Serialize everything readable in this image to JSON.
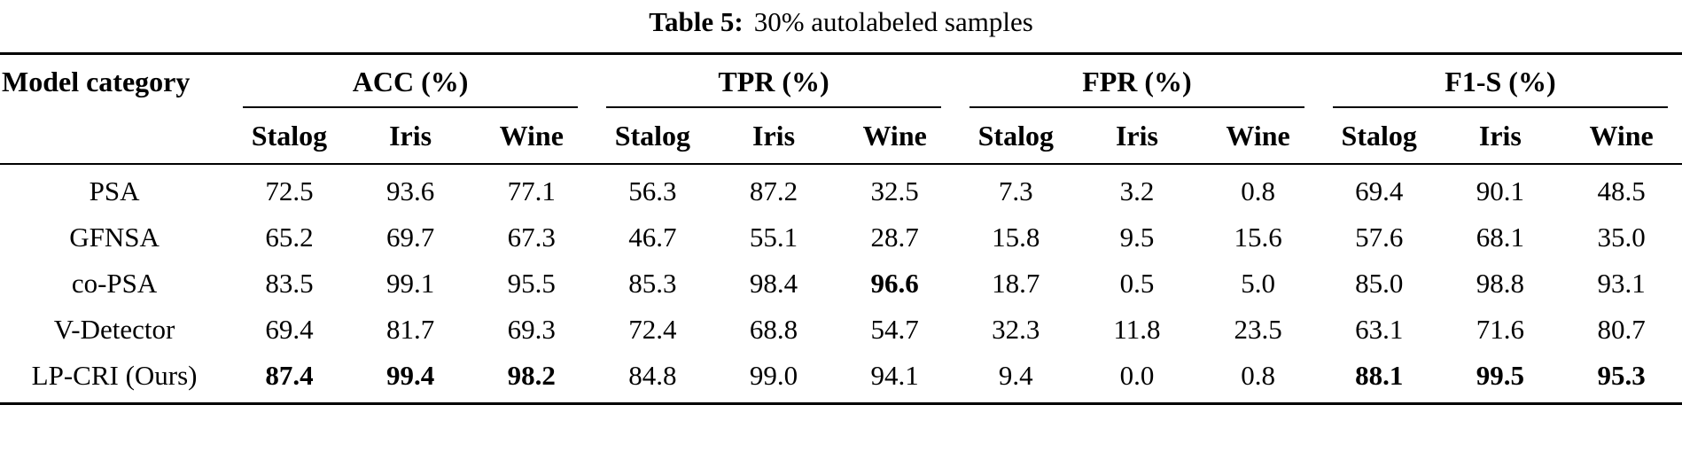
{
  "title": {
    "label": "Table 5:",
    "caption": "30% autolabeled samples"
  },
  "table": {
    "corner_header": "Model category",
    "groups": [
      {
        "label": "ACC (%)"
      },
      {
        "label": "TPR (%)"
      },
      {
        "label": "FPR (%)"
      },
      {
        "label": "F1-S (%)"
      }
    ],
    "subheaders": [
      "Stalog",
      "Iris",
      "Wine"
    ],
    "rows": [
      {
        "model": "PSA",
        "values": [
          "72.5",
          "93.6",
          "77.1",
          "56.3",
          "87.2",
          "32.5",
          "7.3",
          "3.2",
          "0.8",
          "69.4",
          "90.1",
          "48.5"
        ],
        "bold": []
      },
      {
        "model": "GFNSA",
        "values": [
          "65.2",
          "69.7",
          "67.3",
          "46.7",
          "55.1",
          "28.7",
          "15.8",
          "9.5",
          "15.6",
          "57.6",
          "68.1",
          "35.0"
        ],
        "bold": []
      },
      {
        "model": "co-PSA",
        "values": [
          "83.5",
          "99.1",
          "95.5",
          "85.3",
          "98.4",
          "96.6",
          "18.7",
          "0.5",
          "5.0",
          "85.0",
          "98.8",
          "93.1"
        ],
        "bold": [
          5
        ]
      },
      {
        "model": "V-Detector",
        "values": [
          "69.4",
          "81.7",
          "69.3",
          "72.4",
          "68.8",
          "54.7",
          "32.3",
          "11.8",
          "23.5",
          "63.1",
          "71.6",
          "80.7"
        ],
        "bold": []
      },
      {
        "model": "LP-CRI (Ours)",
        "values": [
          "87.4",
          "99.4",
          "98.2",
          "84.8",
          "99.0",
          "94.1",
          "9.4",
          "0.0",
          "0.8",
          "88.1",
          "99.5",
          "95.3"
        ],
        "bold": [
          0,
          1,
          2,
          9,
          10,
          11
        ]
      }
    ]
  }
}
